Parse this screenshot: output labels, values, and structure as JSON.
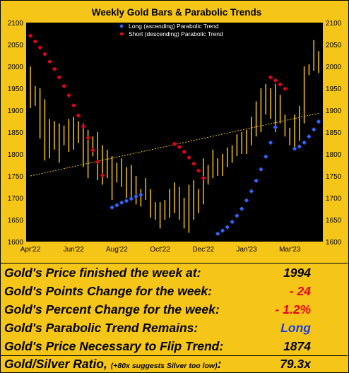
{
  "chart_data": {
    "type": "line",
    "title": "Weekly Gold Bars & Parabolic Trends",
    "ylim": [
      1600,
      2100
    ],
    "yticks": [
      1600,
      1650,
      1700,
      1750,
      1800,
      1850,
      1900,
      1950,
      2000,
      2050,
      2100
    ],
    "x_tick_labels": [
      "Apr'22",
      "Jun'22",
      "Aug'22",
      "Oct'22",
      "Dec'22",
      "Jan'23",
      "Mar'23"
    ],
    "x_tick_weeks": [
      0,
      9,
      18,
      27,
      36,
      45,
      54
    ],
    "weeks": 61,
    "grid": false,
    "legend_placement": "top-center",
    "colors": {
      "bars": "#F5C518",
      "long": "#3366FF",
      "short": "#E8001C",
      "trendline": "#F5C518",
      "panel": "#000000",
      "frame": "#F5C518"
    },
    "series": [
      {
        "name": "Long (ascending) Parabolic Trend",
        "color": "#3366FF",
        "points": [
          [
            17,
            1678
          ],
          [
            18,
            1683
          ],
          [
            19,
            1689
          ],
          [
            20,
            1693
          ],
          [
            21,
            1698
          ],
          [
            22,
            1703
          ],
          [
            23,
            1707
          ],
          [
            39,
            1618
          ],
          [
            40,
            1625
          ],
          [
            41,
            1633
          ],
          [
            42,
            1645
          ],
          [
            43,
            1659
          ],
          [
            44,
            1675
          ],
          [
            45,
            1694
          ],
          [
            46,
            1715
          ],
          [
            47,
            1739
          ],
          [
            48,
            1765
          ],
          [
            49,
            1794
          ],
          [
            50,
            1826
          ],
          [
            51,
            1861
          ],
          [
            55,
            1812
          ],
          [
            56,
            1817
          ],
          [
            57,
            1826
          ],
          [
            58,
            1840
          ],
          [
            59,
            1856
          ],
          [
            60,
            1874
          ]
        ]
      },
      {
        "name": "Short (descending) Parabolic Trend",
        "color": "#E8001C",
        "points": [
          [
            0,
            2070
          ],
          [
            1,
            2057
          ],
          [
            2,
            2043
          ],
          [
            3,
            2028
          ],
          [
            4,
            2011
          ],
          [
            5,
            1994
          ],
          [
            6,
            1975
          ],
          [
            7,
            1955
          ],
          [
            8,
            1934
          ],
          [
            9,
            1911
          ],
          [
            10,
            1888
          ],
          [
            11,
            1863
          ],
          [
            12,
            1837
          ],
          [
            13,
            1809
          ],
          [
            14,
            1782
          ],
          [
            15,
            1751
          ],
          [
            30,
            1823
          ],
          [
            31,
            1816
          ],
          [
            32,
            1805
          ],
          [
            33,
            1792
          ],
          [
            34,
            1778
          ],
          [
            35,
            1762
          ],
          [
            36,
            1745
          ],
          [
            50,
            1975
          ],
          [
            51,
            1968
          ],
          [
            52,
            1959
          ],
          [
            53,
            1949
          ]
        ]
      }
    ],
    "bars": [
      [
        2000,
        1905
      ],
      [
        1955,
        1910
      ],
      [
        1950,
        1835
      ],
      [
        1925,
        1785
      ],
      [
        1880,
        1790
      ],
      [
        1875,
        1810
      ],
      [
        1870,
        1780
      ],
      [
        1865,
        1820
      ],
      [
        1880,
        1805
      ],
      [
        1885,
        1810
      ],
      [
        1875,
        1825
      ],
      [
        1870,
        1770
      ],
      [
        1855,
        1745
      ],
      [
        1840,
        1795
      ],
      [
        1850,
        1740
      ],
      [
        1820,
        1730
      ],
      [
        1810,
        1745
      ],
      [
        1795,
        1695
      ],
      [
        1780,
        1735
      ],
      [
        1790,
        1725
      ],
      [
        1770,
        1700
      ],
      [
        1775,
        1700
      ],
      [
        1750,
        1685
      ],
      [
        1720,
        1680
      ],
      [
        1745,
        1695
      ],
      [
        1720,
        1655
      ],
      [
        1690,
        1650
      ],
      [
        1690,
        1630
      ],
      [
        1695,
        1650
      ],
      [
        1720,
        1655
      ],
      [
        1735,
        1665
      ],
      [
        1725,
        1650
      ],
      [
        1700,
        1630
      ],
      [
        1730,
        1620
      ],
      [
        1740,
        1650
      ],
      [
        1720,
        1665
      ],
      [
        1790,
        1685
      ],
      [
        1775,
        1730
      ],
      [
        1810,
        1745
      ],
      [
        1790,
        1750
      ],
      [
        1800,
        1750
      ],
      [
        1815,
        1770
      ],
      [
        1820,
        1780
      ],
      [
        1845,
        1795
      ],
      [
        1850,
        1800
      ],
      [
        1855,
        1800
      ],
      [
        1885,
        1820
      ],
      [
        1920,
        1840
      ],
      [
        1950,
        1850
      ],
      [
        1960,
        1890
      ],
      [
        1950,
        1880
      ],
      [
        1960,
        1850
      ],
      [
        1935,
        1870
      ],
      [
        1890,
        1840
      ],
      [
        1860,
        1820
      ],
      [
        1890,
        1810
      ],
      [
        1910,
        1830
      ],
      [
        2000,
        1870
      ],
      [
        2005,
        1980
      ],
      [
        2060,
        1990
      ],
      [
        2035,
        1985
      ]
    ],
    "trendline": {
      "start": 1750,
      "end": 1893,
      "style": "dotted"
    }
  },
  "stats": [
    {
      "label": "Gold's Price finished the week at:",
      "value": "1994",
      "color": "#000000"
    },
    {
      "label": "Gold's Points Change for the week:",
      "value": "- 24",
      "color": "#E8001C"
    },
    {
      "label": "Gold's Percent Change for the week:",
      "value": "- 1.2%",
      "color": "#E8001C"
    },
    {
      "label": "Gold's Parabolic Trend Remains:",
      "value": "Long",
      "color": "#2040E0"
    },
    {
      "label": "Gold's Price Necessary to Flip Trend:",
      "value": "1874",
      "color": "#000000"
    }
  ],
  "ratio": {
    "label": "Gold/Silver Ratio,",
    "note": "(+80x suggests Silver too low)",
    "colon": ":",
    "value": "79.3x",
    "color": "#000000"
  }
}
